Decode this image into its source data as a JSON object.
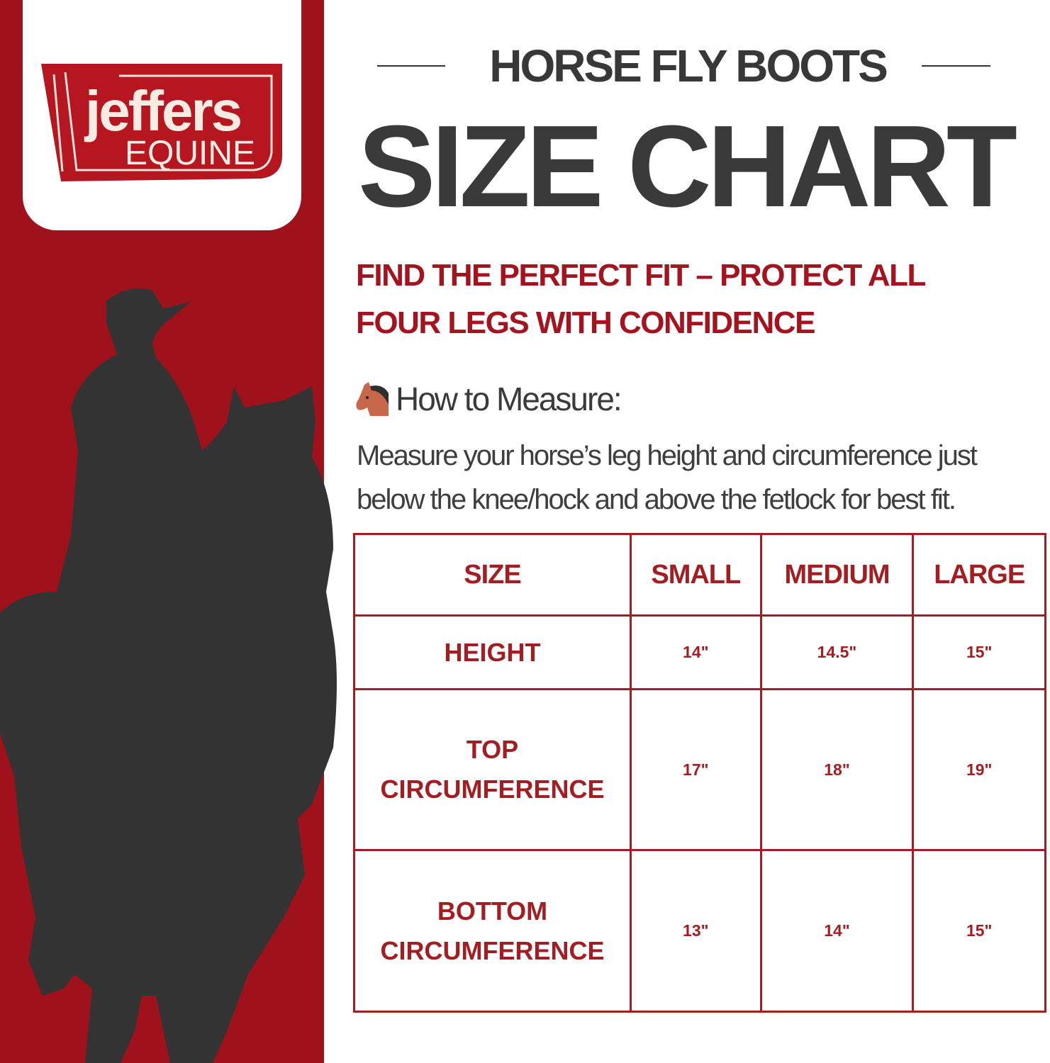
{
  "brand": {
    "logo_text": "jeffers",
    "logo_subtext": "EQUINE",
    "color": "#a0121b"
  },
  "header": {
    "kicker": "HORSE FLY BOOTS",
    "title": "SIZE CHART",
    "tagline_line1": "FIND THE PERFECT FIT – PROTECT ALL",
    "tagline_line2": "FOUR LEGS WITH CONFIDENCE"
  },
  "measure": {
    "icon": "horse-face-icon",
    "heading": "How to Measure:",
    "text": "Measure your horse’s leg height and circumference just below the knee/hock and above the fetlock for best fit."
  },
  "table": {
    "headers": [
      "SIZE",
      "SMALL",
      "MEDIUM",
      "LARGE"
    ],
    "rows": [
      {
        "label": "HEIGHT",
        "values": [
          "14\"",
          "14.5\"",
          "15\""
        ]
      },
      {
        "label_line1": "TOP",
        "label_line2": "CIRCUMFERENCE",
        "values": [
          "17\"",
          "18\"",
          "19\""
        ]
      },
      {
        "label_line1": "BOTTOM",
        "label_line2": "CIRCUMFERENCE",
        "values": [
          "13\"",
          "14\"",
          "15\""
        ]
      }
    ]
  }
}
